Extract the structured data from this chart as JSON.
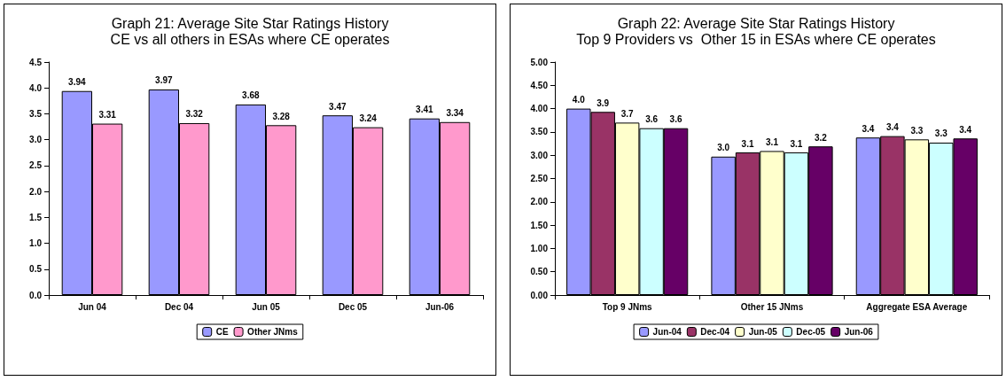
{
  "chart_data": [
    {
      "type": "bar",
      "title": "Graph 21: Average Site Star Ratings History",
      "subtitle": "CE vs all others in ESAs where CE operates",
      "categories": [
        "Jun 04",
        "Dec 04",
        "Jun 05",
        "Dec 05",
        "Jun-06"
      ],
      "series": [
        {
          "name": "CE",
          "color": "#9999ff",
          "values": [
            3.94,
            3.97,
            3.68,
            3.47,
            3.41
          ]
        },
        {
          "name": "Other JNms",
          "color": "#ff99cc",
          "values": [
            3.31,
            3.32,
            3.28,
            3.24,
            3.34
          ]
        }
      ],
      "ylim": [
        0,
        4.5
      ],
      "yticks": [
        {
          "value": 0,
          "label": "0.0"
        },
        0.5,
        {
          "value": 1,
          "label": "1.0"
        },
        1.5,
        {
          "value": 2,
          "label": "2.0"
        },
        2.5,
        {
          "value": 3,
          "label": "3.0"
        },
        3.5,
        {
          "value": 4,
          "label": "4.0"
        },
        4.5
      ],
      "data_labels": true,
      "legend": "bottom"
    },
    {
      "type": "bar",
      "title": "Graph 22: Average Site Star Ratings History",
      "subtitle": "Top 9 Providers vs  Other 15 in ESAs where CE operates",
      "categories": [
        "Top 9 JNms",
        "Other 15 JNms",
        "Aggregate ESA Average"
      ],
      "series": [
        {
          "name": "Jun-04",
          "color": "#9999ff",
          "values": [
            4.0,
            2.97,
            3.38
          ],
          "value_labels": [
            "4.0",
            "3.0",
            "3.4"
          ]
        },
        {
          "name": "Dec-04",
          "color": "#993366",
          "values": [
            3.93,
            3.06,
            3.41
          ],
          "value_labels": [
            "3.9",
            "3.1",
            "3.4"
          ]
        },
        {
          "name": "Jun-05",
          "color": "#ffffcc",
          "values": [
            3.7,
            3.09,
            3.34
          ],
          "value_labels": [
            "3.7",
            "3.1",
            "3.3"
          ]
        },
        {
          "name": "Dec-05",
          "color": "#ccffff",
          "values": [
            3.58,
            3.06,
            3.27
          ],
          "value_labels": [
            "3.6",
            "3.1",
            "3.3"
          ]
        },
        {
          "name": "Jun-06",
          "color": "#660066",
          "values": [
            3.58,
            3.19,
            3.36
          ],
          "value_labels": [
            "3.6",
            "3.2",
            "3.4"
          ]
        }
      ],
      "ylim": [
        0,
        5
      ],
      "yticks": [
        {
          "value": 0,
          "label": "0.00"
        },
        {
          "value": 0.5,
          "label": "0.50"
        },
        {
          "value": 1,
          "label": "1.00"
        },
        {
          "value": 1.5,
          "label": "1.50"
        },
        {
          "value": 2,
          "label": "2.00"
        },
        {
          "value": 2.5,
          "label": "2.50"
        },
        {
          "value": 3,
          "label": "3.00"
        },
        {
          "value": 3.5,
          "label": "3.50"
        },
        {
          "value": 4,
          "label": "4.00"
        },
        {
          "value": 4.5,
          "label": "4.50"
        },
        {
          "value": 5,
          "label": "5.00"
        }
      ],
      "legend": "bottom"
    }
  ]
}
